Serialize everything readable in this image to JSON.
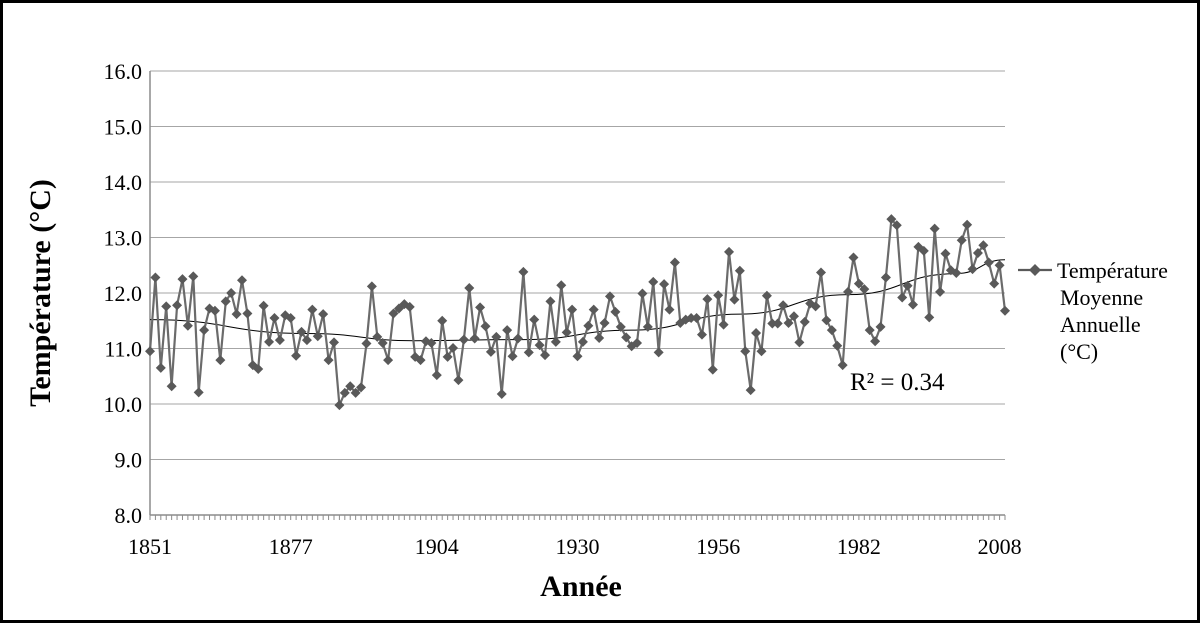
{
  "chart_data": {
    "type": "line",
    "title": "",
    "xlabel": "Année",
    "ylabel": "Température (°C)",
    "ylim": [
      8.0,
      16.0
    ],
    "xlim": [
      1851,
      2009
    ],
    "y_ticks": [
      "8.0",
      "9.0",
      "10.0",
      "11.0",
      "12.0",
      "13.0",
      "14.0",
      "15.0",
      "16.0"
    ],
    "x_ticks": [
      "1851",
      "1877",
      "1904",
      "1930",
      "1956",
      "1982",
      "2008"
    ],
    "grid": true,
    "legend_position": "right",
    "series": [
      {
        "name": "Température Moyenne Annuelle (°C)",
        "color": "#595959",
        "marker": "diamond",
        "x": [
          1851,
          1852,
          1853,
          1854,
          1855,
          1856,
          1857,
          1858,
          1859,
          1860,
          1861,
          1862,
          1863,
          1864,
          1865,
          1866,
          1867,
          1868,
          1869,
          1870,
          1871,
          1872,
          1873,
          1874,
          1875,
          1876,
          1877,
          1878,
          1879,
          1880,
          1881,
          1882,
          1883,
          1884,
          1885,
          1886,
          1887,
          1888,
          1889,
          1890,
          1891,
          1892,
          1893,
          1894,
          1895,
          1896,
          1897,
          1898,
          1899,
          1900,
          1901,
          1902,
          1903,
          1904,
          1905,
          1906,
          1907,
          1908,
          1909,
          1910,
          1911,
          1912,
          1913,
          1914,
          1915,
          1916,
          1917,
          1918,
          1919,
          1920,
          1921,
          1922,
          1923,
          1924,
          1925,
          1926,
          1927,
          1928,
          1929,
          1930,
          1931,
          1932,
          1933,
          1934,
          1935,
          1936,
          1937,
          1938,
          1939,
          1940,
          1941,
          1942,
          1943,
          1944,
          1945,
          1946,
          1947,
          1948,
          1949,
          1950,
          1951,
          1952,
          1953,
          1954,
          1955,
          1956,
          1957,
          1958,
          1959,
          1960,
          1961,
          1962,
          1963,
          1964,
          1965,
          1966,
          1967,
          1968,
          1969,
          1970,
          1971,
          1972,
          1973,
          1974,
          1975,
          1976,
          1977,
          1978,
          1979,
          1980,
          1981,
          1982,
          1983,
          1984,
          1985,
          1986,
          1987,
          1988,
          1989,
          1990,
          1991,
          1992,
          1993,
          1994,
          1995,
          1996,
          1997,
          1998,
          1999,
          2000,
          2001,
          2002,
          2003,
          2004,
          2005,
          2006,
          2007,
          2008,
          2009
        ],
        "values": [
          10.95,
          12.28,
          10.65,
          11.76,
          10.32,
          11.78,
          12.25,
          11.41,
          12.3,
          10.21,
          11.33,
          11.72,
          11.68,
          10.79,
          11.85,
          12.0,
          11.62,
          12.23,
          11.63,
          10.7,
          10.63,
          11.77,
          11.12,
          11.55,
          11.15,
          11.6,
          11.55,
          10.87,
          11.3,
          11.15,
          11.7,
          11.22,
          11.62,
          10.79,
          11.11,
          9.98,
          10.2,
          10.32,
          10.2,
          10.3,
          11.09,
          12.12,
          11.21,
          11.1,
          10.79,
          11.63,
          11.72,
          11.8,
          11.75,
          10.85,
          10.79,
          11.13,
          11.1,
          10.52,
          11.5,
          10.85,
          11.01,
          10.43,
          11.16,
          12.09,
          11.18,
          11.74,
          11.4,
          10.94,
          11.21,
          10.18,
          11.33,
          10.86,
          11.18,
          12.38,
          10.93,
          11.52,
          11.06,
          10.88,
          11.85,
          11.12,
          12.14,
          11.29,
          11.7,
          10.86,
          11.12,
          11.41,
          11.7,
          11.19,
          11.46,
          11.94,
          11.66,
          11.39,
          11.2,
          11.04,
          11.1,
          11.99,
          11.39,
          12.2,
          10.93,
          12.16,
          11.7,
          12.55,
          11.46,
          11.52,
          11.55,
          11.55,
          11.25,
          11.89,
          10.62,
          11.96,
          11.43,
          12.74,
          11.88,
          12.4,
          10.95,
          10.25,
          11.28,
          10.95,
          11.95,
          11.45,
          11.45,
          11.78,
          11.46,
          11.58,
          11.11,
          11.48,
          11.81,
          11.76,
          12.37,
          11.51,
          11.33,
          11.05,
          10.7,
          12.02,
          12.64,
          12.17,
          12.07,
          11.33,
          11.13,
          11.39,
          12.28,
          13.33,
          13.22,
          11.92,
          12.13,
          11.79,
          12.83,
          12.76,
          11.56,
          13.16,
          12.02,
          12.71,
          12.41,
          12.36,
          12.95,
          13.23,
          12.43,
          12.72,
          12.86,
          12.55,
          12.17,
          12.5,
          11.68
        ]
      }
    ],
    "trendline": {
      "type": "polynomial",
      "label": "R² = 0.34",
      "color": "#000000",
      "points": [
        {
          "x": 1851,
          "y": 11.52
        },
        {
          "x": 1880,
          "y": 11.27
        },
        {
          "x": 1900,
          "y": 11.14
        },
        {
          "x": 1920,
          "y": 11.16
        },
        {
          "x": 1940,
          "y": 11.33
        },
        {
          "x": 1960,
          "y": 11.62
        },
        {
          "x": 1980,
          "y": 11.97
        },
        {
          "x": 2000,
          "y": 12.35
        },
        {
          "x": 2009,
          "y": 12.6
        }
      ]
    }
  }
}
